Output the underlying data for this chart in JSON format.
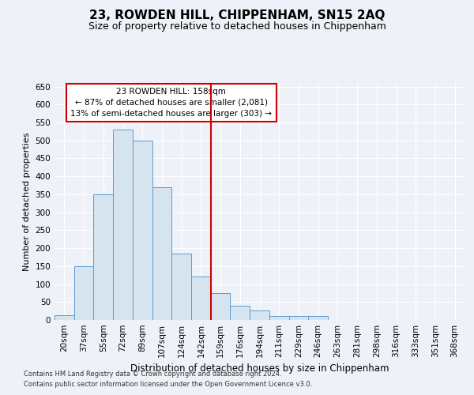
{
  "title": "23, ROWDEN HILL, CHIPPENHAM, SN15 2AQ",
  "subtitle": "Size of property relative to detached houses in Chippenham",
  "xlabel": "Distribution of detached houses by size in Chippenham",
  "ylabel": "Number of detached properties",
  "categories": [
    "20sqm",
    "37sqm",
    "55sqm",
    "72sqm",
    "89sqm",
    "107sqm",
    "124sqm",
    "142sqm",
    "159sqm",
    "176sqm",
    "194sqm",
    "211sqm",
    "229sqm",
    "246sqm",
    "263sqm",
    "281sqm",
    "298sqm",
    "316sqm",
    "333sqm",
    "351sqm",
    "368sqm"
  ],
  "values": [
    13,
    150,
    350,
    530,
    500,
    370,
    185,
    120,
    75,
    40,
    27,
    12,
    12,
    10,
    0,
    0,
    0,
    0,
    0,
    0,
    0
  ],
  "bar_color": "#d6e4f0",
  "bar_edge_color": "#5b9bd5",
  "vline_color": "#cc0000",
  "vline_x_index": 8,
  "ylim": [
    0,
    660
  ],
  "yticks": [
    0,
    50,
    100,
    150,
    200,
    250,
    300,
    350,
    400,
    450,
    500,
    550,
    600,
    650
  ],
  "annotation_text": "23 ROWDEN HILL: 158sqm\n← 87% of detached houses are smaller (2,081)\n13% of semi-detached houses are larger (303) →",
  "annotation_box_color": "#cc0000",
  "footer_line1": "Contains HM Land Registry data © Crown copyright and database right 2024.",
  "footer_line2": "Contains public sector information licensed under the Open Government Licence v3.0.",
  "background_color": "#eef2f8",
  "grid_color": "#ffffff",
  "title_fontsize": 11,
  "subtitle_fontsize": 9,
  "axis_label_fontsize": 8,
  "tick_fontsize": 7.5
}
